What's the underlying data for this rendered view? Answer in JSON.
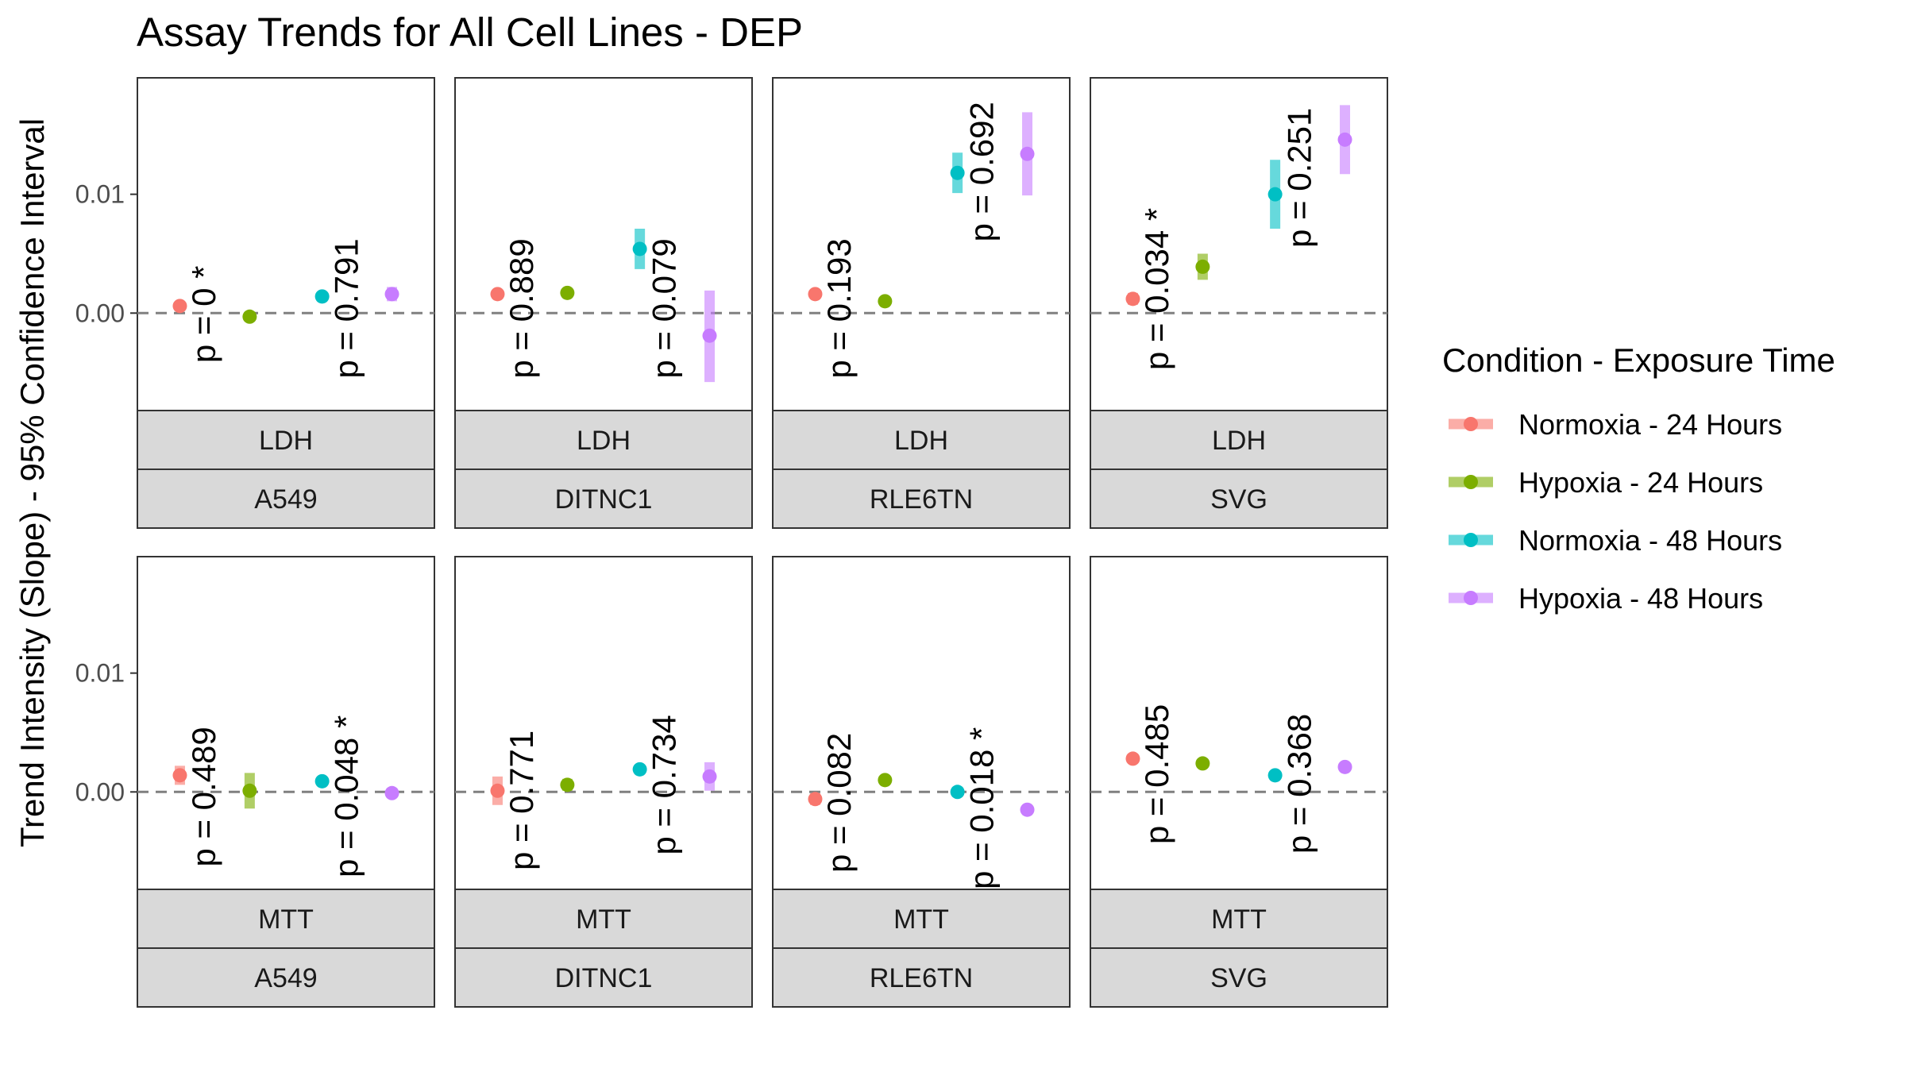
{
  "title": "Assay Trends for All Cell Lines - DEP",
  "legend": {
    "title": "Condition - Exposure Time",
    "items": [
      {
        "label": "Normoxia - 24 Hours",
        "color": "#F8766D"
      },
      {
        "label": "Hypoxia - 24 Hours",
        "color": "#7CAE00"
      },
      {
        "label": "Normoxia - 48 Hours",
        "color": "#00BFC4"
      },
      {
        "label": "Hypoxia - 48 Hours",
        "color": "#C77CFF"
      }
    ]
  },
  "chart_data": {
    "type": "scatter",
    "title": "Assay Trends for All Cell Lines - DEP",
    "ylabel": "Trend Intensity (Slope) - 95% Confidence Interval",
    "xlabel": "",
    "ylim": [
      -0.0082,
      0.0198
    ],
    "yticks": [
      0.0,
      0.01
    ],
    "ytick_labels": [
      "0.00",
      "0.01"
    ],
    "reference_line": 0,
    "grid": false,
    "legend_position": "right",
    "series_names": [
      "Normoxia - 24 Hours",
      "Hypoxia - 24 Hours",
      "Normoxia - 48 Hours",
      "Hypoxia - 48 Hours"
    ],
    "panels": [
      {
        "assay": "LDH",
        "cell_line": "A549",
        "points": [
          {
            "series": 0,
            "y": 0.0006,
            "lo": 0.0004,
            "hi": 0.0008
          },
          {
            "series": 1,
            "y": -0.0003,
            "lo": -0.0006,
            "hi": 0.0
          },
          {
            "series": 2,
            "y": 0.0014,
            "lo": 0.0011,
            "hi": 0.0017
          },
          {
            "series": 3,
            "y": 0.0016,
            "lo": 0.001,
            "hi": 0.0022
          }
        ],
        "pvalues": [
          {
            "text": "p = 0 *",
            "anchor_y": -0.0042
          },
          {
            "text": "p = 0.791",
            "anchor_y": -0.0055
          }
        ]
      },
      {
        "assay": "LDH",
        "cell_line": "DITNC1",
        "points": [
          {
            "series": 0,
            "y": 0.0016,
            "lo": 0.0013,
            "hi": 0.0019
          },
          {
            "series": 1,
            "y": 0.0017,
            "lo": 0.0014,
            "hi": 0.002
          },
          {
            "series": 2,
            "y": 0.0054,
            "lo": 0.0037,
            "hi": 0.0071
          },
          {
            "series": 3,
            "y": -0.0019,
            "lo": -0.0058,
            "hi": 0.0019
          }
        ],
        "pvalues": [
          {
            "text": "p = 0.889",
            "anchor_y": -0.0055
          },
          {
            "text": "p = 0.079",
            "anchor_y": -0.0055
          }
        ]
      },
      {
        "assay": "LDH",
        "cell_line": "RLE6TN",
        "points": [
          {
            "series": 0,
            "y": 0.0016,
            "lo": 0.0013,
            "hi": 0.0019
          },
          {
            "series": 1,
            "y": 0.001,
            "lo": 0.0007,
            "hi": 0.0013
          },
          {
            "series": 2,
            "y": 0.0118,
            "lo": 0.0101,
            "hi": 0.0135
          },
          {
            "series": 3,
            "y": 0.0134,
            "lo": 0.0099,
            "hi": 0.0169
          }
        ],
        "pvalues": [
          {
            "text": "p = 0.193",
            "anchor_y": -0.0055
          },
          {
            "text": "p = 0.692",
            "anchor_y": 0.006
          }
        ]
      },
      {
        "assay": "LDH",
        "cell_line": "SVG",
        "points": [
          {
            "series": 0,
            "y": 0.0012,
            "lo": 0.0007,
            "hi": 0.0017
          },
          {
            "series": 1,
            "y": 0.0039,
            "lo": 0.0028,
            "hi": 0.005
          },
          {
            "series": 2,
            "y": 0.01,
            "lo": 0.0071,
            "hi": 0.0129
          },
          {
            "series": 3,
            "y": 0.0146,
            "lo": 0.0117,
            "hi": 0.0175
          }
        ],
        "pvalues": [
          {
            "text": "p = 0.034 *",
            "anchor_y": -0.0048
          },
          {
            "text": "p = 0.251",
            "anchor_y": 0.0055
          }
        ]
      },
      {
        "assay": "MTT",
        "cell_line": "A549",
        "points": [
          {
            "series": 0,
            "y": 0.0014,
            "lo": 0.0006,
            "hi": 0.0022
          },
          {
            "series": 1,
            "y": 0.0001,
            "lo": -0.0014,
            "hi": 0.0016
          },
          {
            "series": 2,
            "y": 0.0009,
            "lo": 0.0006,
            "hi": 0.0012
          },
          {
            "series": 3,
            "y": -0.0001,
            "lo": -0.0004,
            "hi": 0.0002
          }
        ],
        "pvalues": [
          {
            "text": "p = 0.489",
            "anchor_y": -0.0063
          },
          {
            "text": "p = 0.048 *",
            "anchor_y": -0.0072
          }
        ]
      },
      {
        "assay": "MTT",
        "cell_line": "DITNC1",
        "points": [
          {
            "series": 0,
            "y": 0.0001,
            "lo": -0.0011,
            "hi": 0.0013
          },
          {
            "series": 1,
            "y": 0.0006,
            "lo": 0.0001,
            "hi": 0.0011
          },
          {
            "series": 2,
            "y": 0.0019,
            "lo": 0.0016,
            "hi": 0.0022
          },
          {
            "series": 3,
            "y": 0.0013,
            "lo": 0.0001,
            "hi": 0.0025
          }
        ],
        "pvalues": [
          {
            "text": "p = 0.771",
            "anchor_y": -0.0066
          },
          {
            "text": "p = 0.734",
            "anchor_y": -0.0053
          }
        ]
      },
      {
        "assay": "MTT",
        "cell_line": "RLE6TN",
        "points": [
          {
            "series": 0,
            "y": -0.0006,
            "lo": -0.0011,
            "hi": -0.0001
          },
          {
            "series": 1,
            "y": 0.001,
            "lo": 0.0007,
            "hi": 0.0013
          },
          {
            "series": 2,
            "y": 0.0,
            "lo": -0.0003,
            "hi": 0.0003
          },
          {
            "series": 3,
            "y": -0.0015,
            "lo": -0.0018,
            "hi": -0.0012
          }
        ],
        "pvalues": [
          {
            "text": "p = 0.082",
            "anchor_y": -0.0068
          },
          {
            "text": "p = 0.018 *",
            "anchor_y": -0.0082
          }
        ]
      },
      {
        "assay": "MTT",
        "cell_line": "SVG",
        "points": [
          {
            "series": 0,
            "y": 0.0028,
            "lo": 0.0025,
            "hi": 0.0031
          },
          {
            "series": 1,
            "y": 0.0024,
            "lo": 0.0021,
            "hi": 0.0027
          },
          {
            "series": 2,
            "y": 0.0014,
            "lo": 0.0011,
            "hi": 0.0017
          },
          {
            "series": 3,
            "y": 0.0021,
            "lo": 0.0018,
            "hi": 0.0024
          }
        ],
        "pvalues": [
          {
            "text": "p = 0.485",
            "anchor_y": -0.0044
          },
          {
            "text": "p = 0.368",
            "anchor_y": -0.0052
          }
        ]
      }
    ]
  }
}
